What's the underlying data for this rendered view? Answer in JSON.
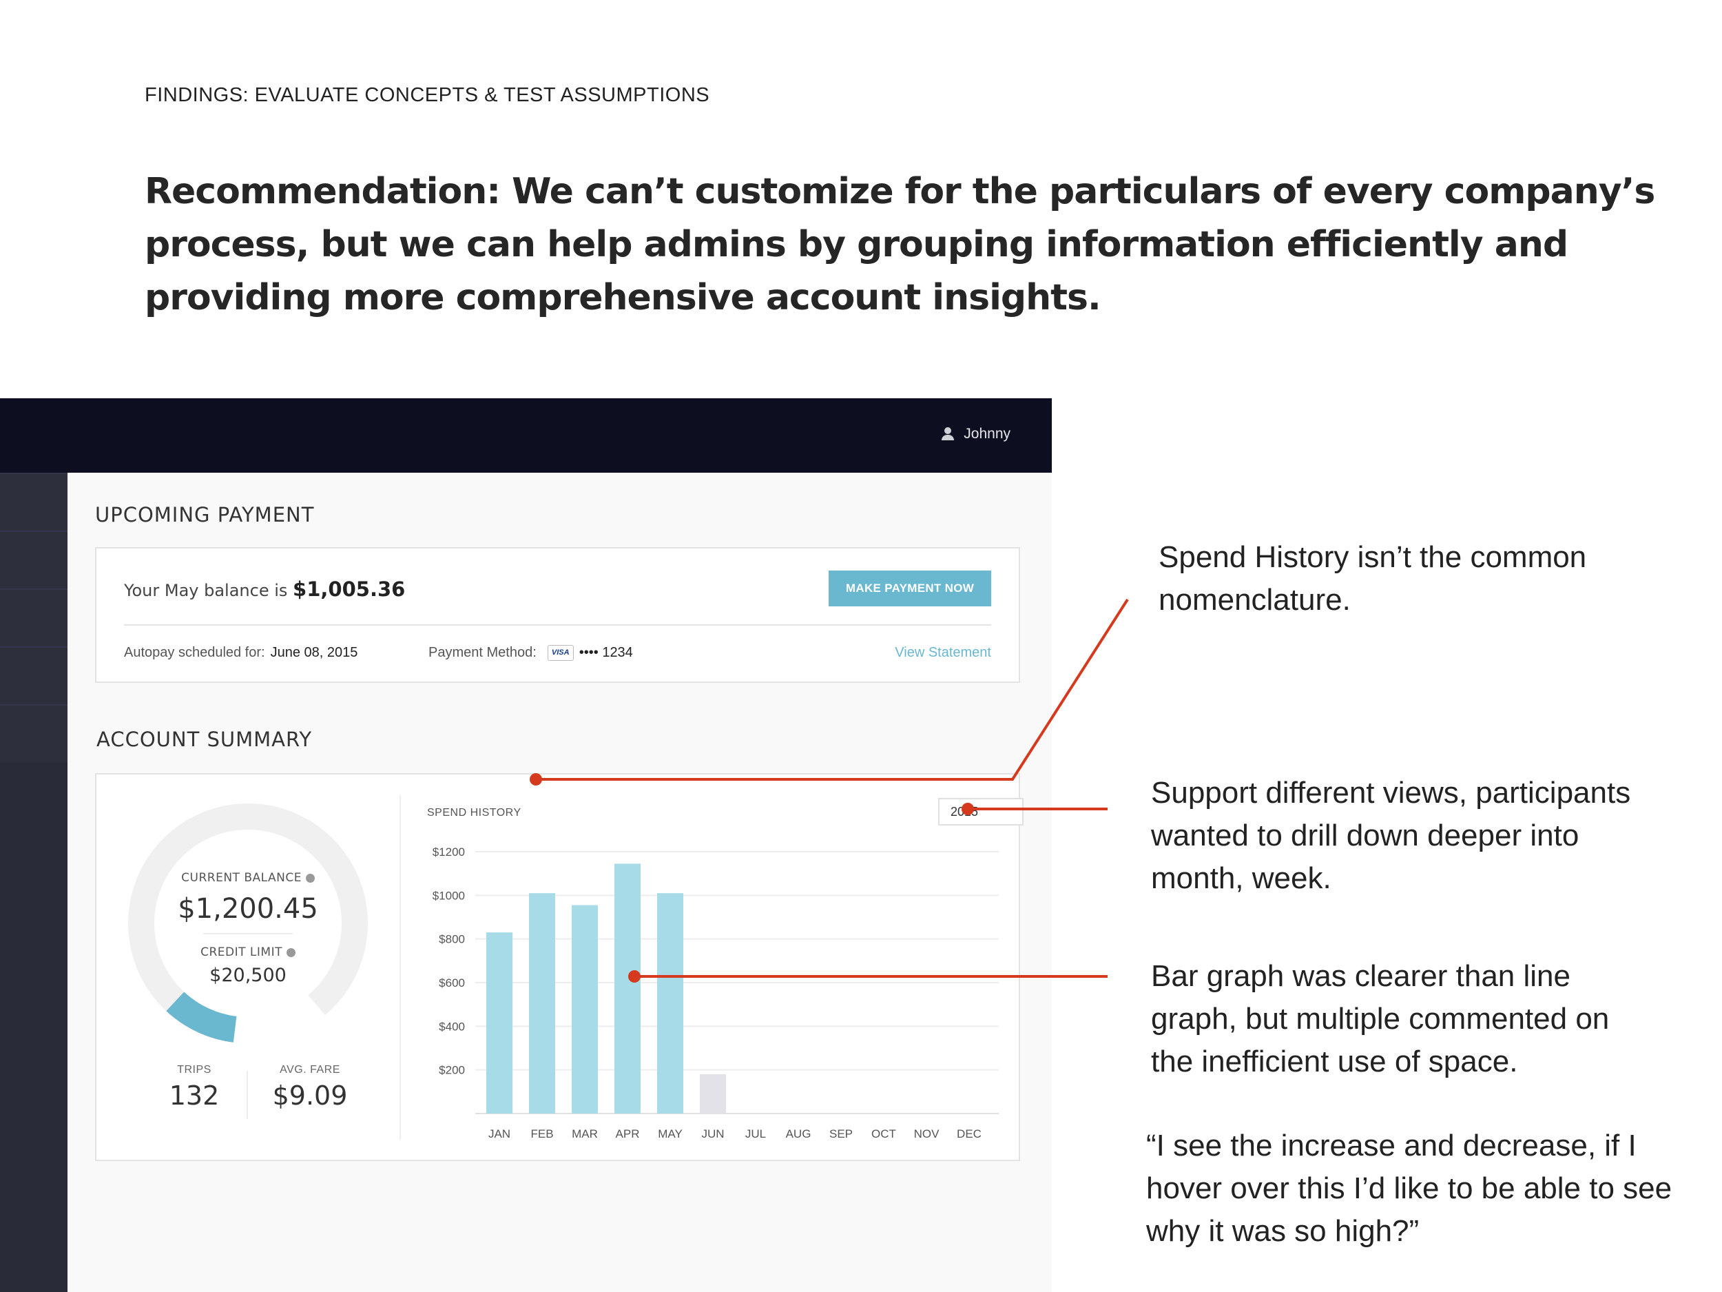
{
  "slide": {
    "kicker": "FINDINGS: EVALUATE CONCEPTS & TEST ASSUMPTIONS",
    "headline": "Recommendation: We can’t customize for the particulars of every company’s process, but we can help admins by grouping information efficiently and providing more comprehensive account insights."
  },
  "app": {
    "user_name": "Johnny",
    "upcoming": {
      "title": "UPCOMING PAYMENT",
      "balance_prefix": "Your May balance is",
      "balance_amount": "$1,005.36",
      "pay_button": "MAKE PAYMENT NOW",
      "autopay_label": "Autopay scheduled for:",
      "autopay_date": "June 08, 2015",
      "method_label": "Payment Method:",
      "card_brand": "VISA",
      "card_number": "•••• 1234",
      "view_statement": "View Statement"
    },
    "summary": {
      "title": "ACCOUNT SUMMARY",
      "current_balance_label": "CURRENT BALANCE",
      "current_balance": "$1,200.45",
      "credit_limit_label": "CREDIT LIMIT",
      "credit_limit": "$20,500",
      "usage_fraction": 0.06,
      "trips_label": "TRIPS",
      "trips": "132",
      "avg_fare_label": "AVG. FARE",
      "avg_fare": "$9.09",
      "year": "2015"
    }
  },
  "chart_data": {
    "type": "bar",
    "title": "SPEND HISTORY",
    "categories": [
      "JAN",
      "FEB",
      "MAR",
      "APR",
      "MAY",
      "JUN",
      "JUL",
      "AUG",
      "SEP",
      "OCT",
      "NOV",
      "DEC"
    ],
    "values": [
      830,
      1010,
      955,
      1145,
      1010,
      180,
      0,
      0,
      0,
      0,
      0,
      0
    ],
    "ylim": [
      0,
      1200
    ],
    "yticks": [
      "$200",
      "$400",
      "$600",
      "$800",
      "$1000",
      "$1200"
    ],
    "ytick_values": [
      200,
      400,
      600,
      800,
      1000,
      1200
    ],
    "grid": true,
    "colors": {
      "actual": "#a8dbe8",
      "projected": "#e2e2e8",
      "grid": "#ededed"
    }
  },
  "annotations": {
    "note1": "Spend History isn’t the common nomenclature.",
    "note2": "Support different views, participants wanted to drill down deeper into month, week.",
    "note3": "Bar graph was clearer than line graph, but multiple commented on the inefficient use of space.",
    "note4": "“I see the increase and decrease, if I hover over this I’d like to be able to see why it was so high?”",
    "line_color": "#d63a1e"
  }
}
